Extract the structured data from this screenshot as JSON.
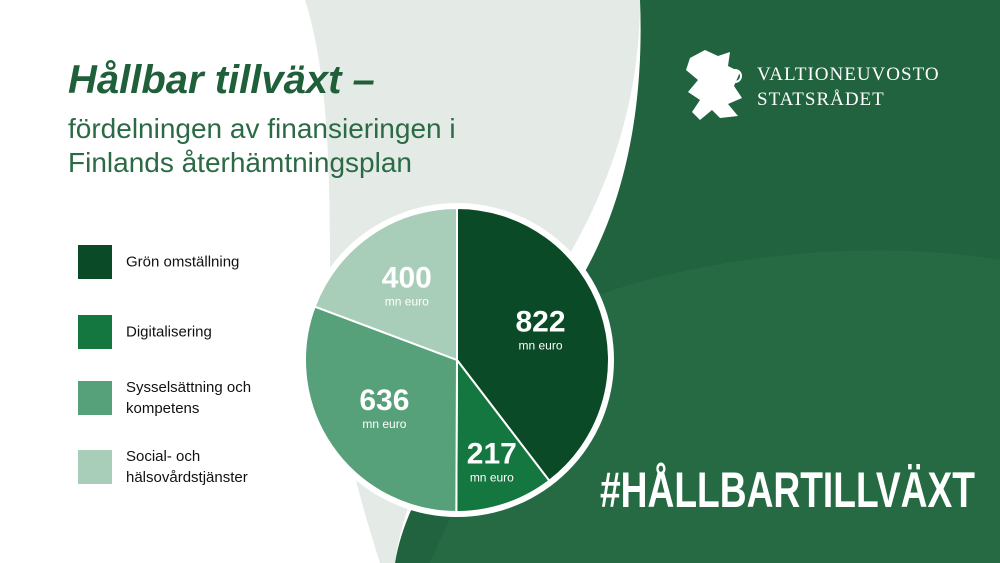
{
  "chart_data": {
    "type": "pie",
    "title": "Hållbar tillväxt –",
    "subtitle": "fördelningen av finansieringen i Finlands återhämtningsplan",
    "categories": [
      "Grön omställning",
      "Digitalisering",
      "Sysselsättning och kompetens",
      "Social- och hälsovårdstjänster"
    ],
    "values": [
      822,
      217,
      636,
      400
    ],
    "colors": [
      "#0b4a27",
      "#14773f",
      "#56a07a",
      "#a8cdb9"
    ],
    "unit_label": "mn euro"
  },
  "brand": {
    "name_fi": "VALTIONEUVOSTO",
    "name_sv": "STATSRÅDET"
  },
  "hashtag": "#HÅLLBARTILLVÄXT"
}
